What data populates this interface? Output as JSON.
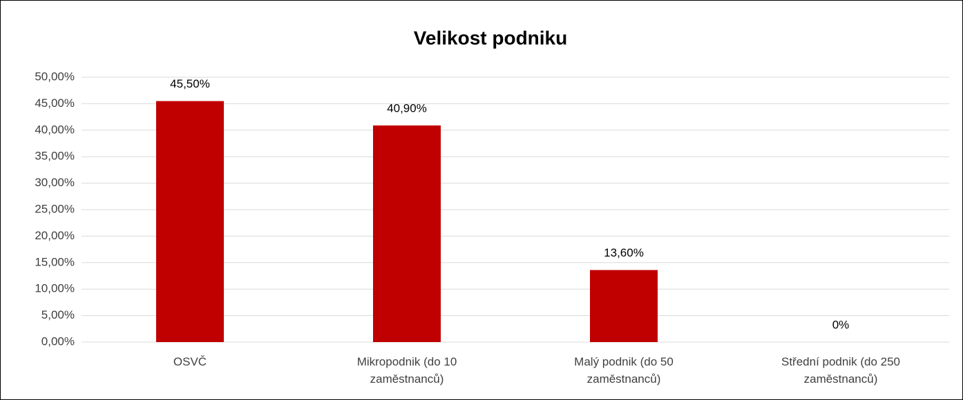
{
  "chart_data": {
    "type": "bar",
    "title": "Velikost podniku",
    "categories": [
      "OSVČ",
      "Mikropodnik (do 10 zaměstnanců)",
      "Malý podnik (do 50 zaměstnanců)",
      "Střední podnik (do 250 zaměstnanců)"
    ],
    "values": [
      45.5,
      40.9,
      13.6,
      0
    ],
    "value_labels": [
      "45,50%",
      "40,90%",
      "13,60%",
      "0%"
    ],
    "color": "#c00000",
    "ylim": [
      0,
      50
    ],
    "yticks": [
      {
        "value": 0,
        "label": "0,00%"
      },
      {
        "value": 5,
        "label": "5,00%"
      },
      {
        "value": 10,
        "label": "10,00%"
      },
      {
        "value": 15,
        "label": "15,00%"
      },
      {
        "value": 20,
        "label": "20,00%"
      },
      {
        "value": 25,
        "label": "25,00%"
      },
      {
        "value": 30,
        "label": "30,00%"
      },
      {
        "value": 35,
        "label": "35,00%"
      },
      {
        "value": 40,
        "label": "40,00%"
      },
      {
        "value": 45,
        "label": "45,00%"
      },
      {
        "value": 50,
        "label": "50,00%"
      }
    ],
    "grid": true
  }
}
